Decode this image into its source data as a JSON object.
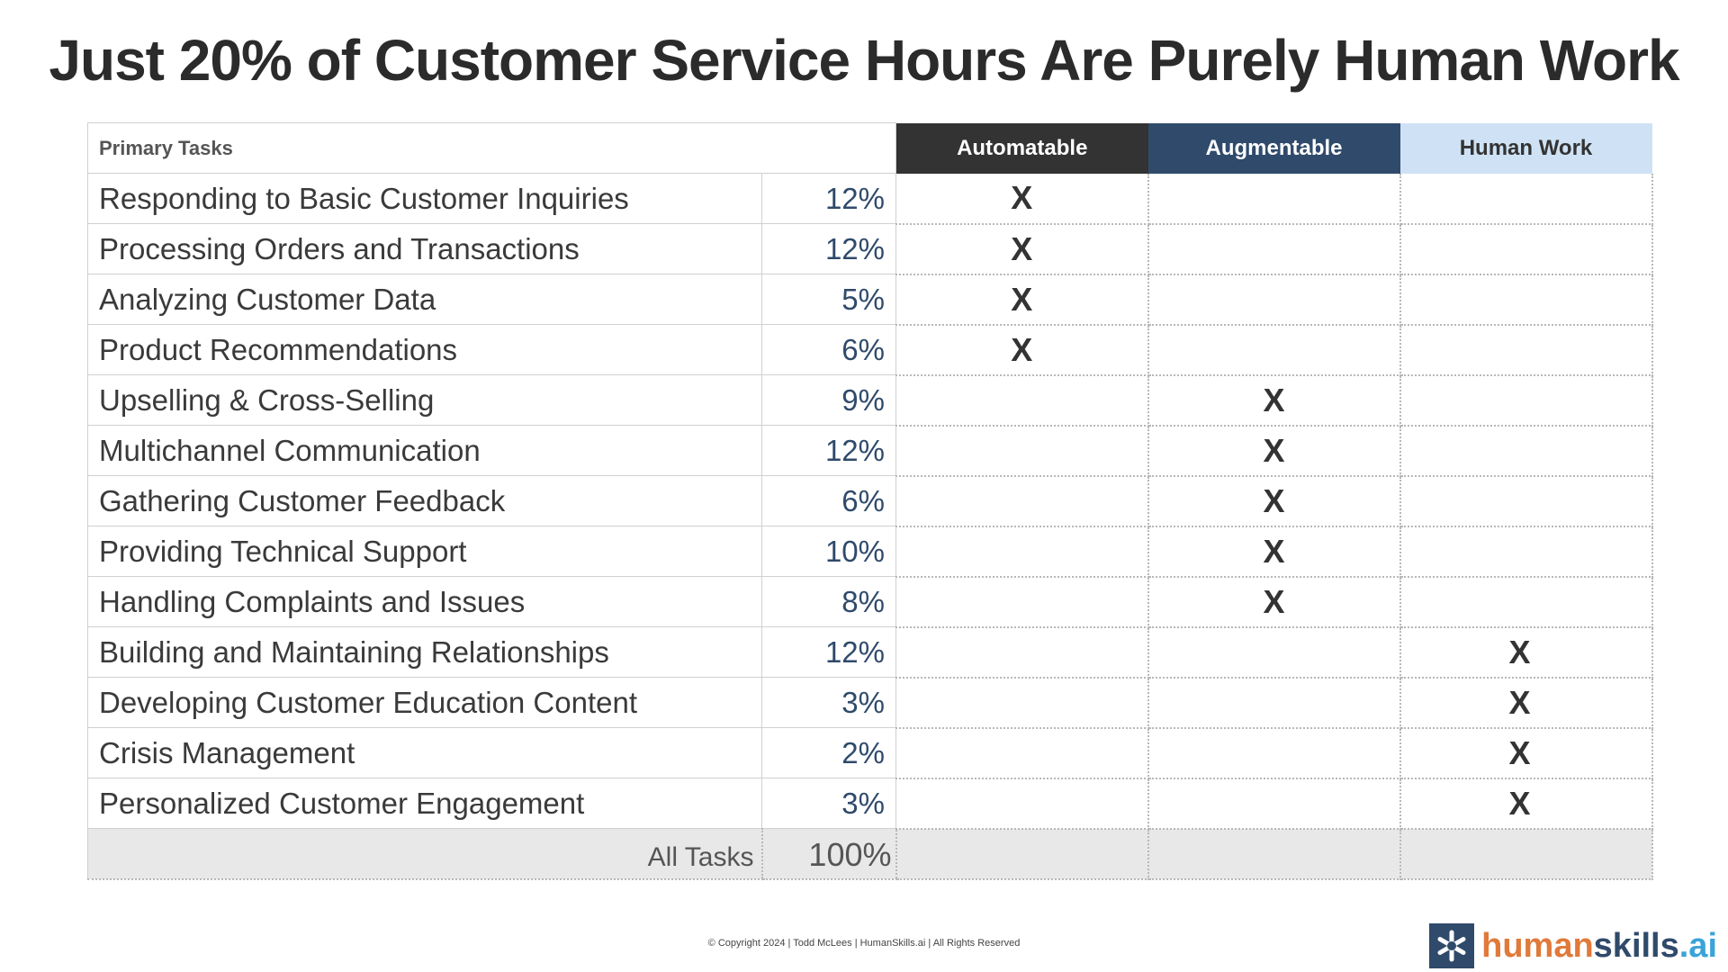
{
  "title": "Just 20% of Customer Service Hours Are Purely Human Work",
  "table": {
    "headers": {
      "task": "Primary Tasks",
      "automatable": "Automatable",
      "augmentable": "Augmentable",
      "human": "Human Work"
    },
    "mark_symbol": "X",
    "rows": [
      {
        "task": "Responding to Basic Customer Inquiries",
        "pct": "12%",
        "auto": "X",
        "aug": "",
        "hum": ""
      },
      {
        "task": "Processing Orders and Transactions",
        "pct": "12%",
        "auto": "X",
        "aug": "",
        "hum": ""
      },
      {
        "task": "Analyzing Customer Data",
        "pct": "5%",
        "auto": "X",
        "aug": "",
        "hum": ""
      },
      {
        "task": "Product Recommendations",
        "pct": "6%",
        "auto": "X",
        "aug": "",
        "hum": ""
      },
      {
        "task": "Upselling & Cross-Selling",
        "pct": "9%",
        "auto": "",
        "aug": "X",
        "hum": ""
      },
      {
        "task": "Multichannel Communication",
        "pct": "12%",
        "auto": "",
        "aug": "X",
        "hum": ""
      },
      {
        "task": "Gathering Customer Feedback",
        "pct": "6%",
        "auto": "",
        "aug": "X",
        "hum": ""
      },
      {
        "task": "Providing Technical Support",
        "pct": "10%",
        "auto": "",
        "aug": "X",
        "hum": ""
      },
      {
        "task": "Handling Complaints and Issues",
        "pct": "8%",
        "auto": "",
        "aug": "X",
        "hum": ""
      },
      {
        "task": "Building and Maintaining Relationships",
        "pct": "12%",
        "auto": "",
        "aug": "",
        "hum": "X"
      },
      {
        "task": "Developing Customer Education Content",
        "pct": "3%",
        "auto": "",
        "aug": "",
        "hum": "X"
      },
      {
        "task": "Crisis Management",
        "pct": "2%",
        "auto": "",
        "aug": "",
        "hum": "X"
      },
      {
        "task": "Personalized Customer Engagement",
        "pct": "3%",
        "auto": "",
        "aug": "",
        "hum": "X"
      }
    ],
    "total": {
      "label": "All Tasks",
      "pct": "100%"
    }
  },
  "footer": "© Copyright 2024  |  Todd McLees  |  HumanSkills.ai | All Rights Reserved",
  "logo": {
    "part1": "human",
    "part2": "skills",
    "part3": ".ai",
    "icon": "asterisk-logo-icon"
  },
  "colors": {
    "automatable_header": "#333333",
    "augmentable_header": "#2f4a6b",
    "human_header": "#cfe2f5",
    "pct_text": "#2f4a6b",
    "logo_human": "#e07a3a",
    "logo_skills": "#2f4a6b",
    "logo_ai": "#3aa3d9"
  }
}
